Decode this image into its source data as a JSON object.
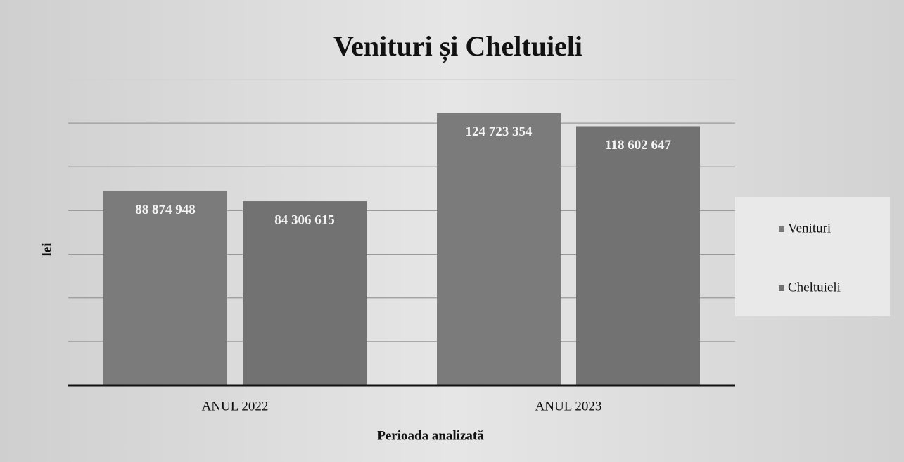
{
  "chart_data": {
    "type": "bar",
    "title": "Venituri și Cheltuieli",
    "ylabel": "lei",
    "xlabel": "Perioada analizată",
    "categories": [
      "ANUL 2022",
      "ANUL 2023"
    ],
    "series": [
      {
        "name": "Venituri",
        "color": "#7b7b7b",
        "values": [
          88874948,
          124723354
        ],
        "value_labels": [
          "88 874 948",
          "124 723 354"
        ]
      },
      {
        "name": "Cheltuieli",
        "color": "#727272",
        "values": [
          84306615,
          118602647
        ],
        "value_labels": [
          "84 306 615",
          "118 602 647"
        ]
      }
    ],
    "ylim": [
      0,
      140000000
    ],
    "yticks": [
      0,
      20000000,
      40000000,
      60000000,
      80000000,
      100000000,
      120000000,
      140000000
    ],
    "grid": true,
    "legend": "right"
  }
}
